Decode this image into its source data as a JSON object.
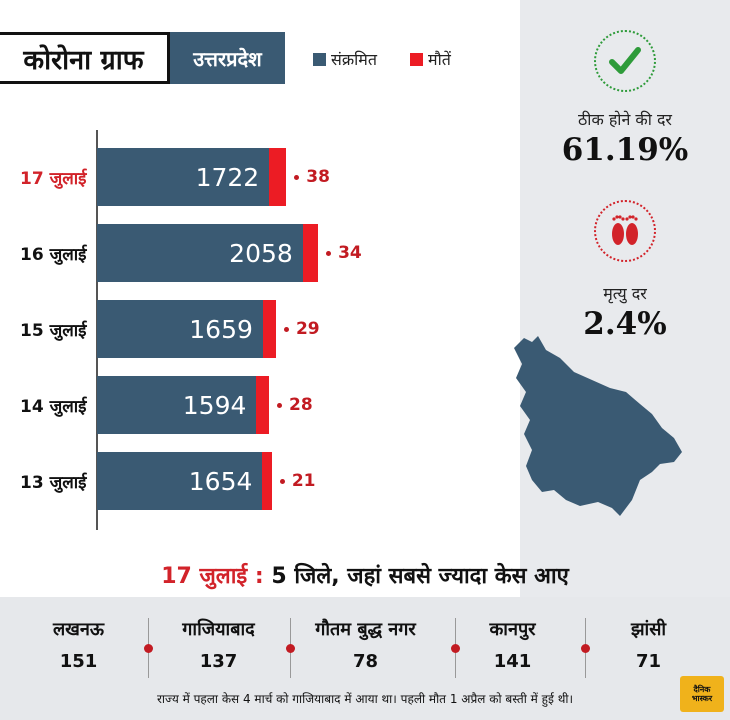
{
  "header": {
    "title": "कोरोना ग्राफ",
    "state": "उत्तरप्रदेश",
    "legend": [
      {
        "label": "संक्रमित",
        "color": "#3a5a73"
      },
      {
        "label": "मौतें",
        "color": "#ec1c24"
      }
    ]
  },
  "stats": {
    "recovery_label": "ठीक होने की दर",
    "recovery_value": "61.19%",
    "death_label": "मृत्यु दर",
    "death_value": "2.4%",
    "recovery_icon": "checkmark-icon",
    "death_icon": "footprints-icon"
  },
  "chart_data": {
    "type": "bar",
    "orientation": "horizontal",
    "stacked": true,
    "categories": [
      "17 जुलाई",
      "16 जुलाई",
      "15 जुलाई",
      "14 जुलाई",
      "13 जुलाई"
    ],
    "highlight_category": "17 जुलाई",
    "highlight_color": "#d2232a",
    "series": [
      {
        "name": "संक्रमित",
        "values": [
          1722,
          2058,
          1659,
          1594,
          1654
        ],
        "color": "#3a5a73"
      },
      {
        "name": "मौतें",
        "values": [
          38,
          34,
          29,
          28,
          21
        ],
        "color": "#ec1c24"
      }
    ],
    "grid": false
  },
  "cities": {
    "heading_date": "17 जुलाई :",
    "heading_text": "5 जिले, जहां सबसे ज्यादा केस आए",
    "items": [
      {
        "name": "लखनऊ",
        "value": "151"
      },
      {
        "name": "गाजियाबाद",
        "value": "137"
      },
      {
        "name": "गौतम बुद्ध नगर",
        "value": "78"
      },
      {
        "name": "कानपुर",
        "value": "141"
      },
      {
        "name": "झांसी",
        "value": "71"
      }
    ]
  },
  "footnote": "राज्य में पहला केस 4 मार्च को गाजियाबाद में आया था। पहली मौत 1 अप्रैल को बस्ती में हुई थी।",
  "logo": {
    "line1": "दैनिक",
    "line2": "भास्कर"
  }
}
